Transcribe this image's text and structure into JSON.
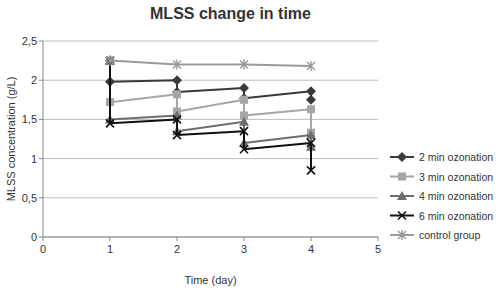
{
  "chart_data": {
    "type": "line",
    "title": "MLSS change in time",
    "x_label": "Time (day)",
    "y_label": "MLSS concentration (g/L)",
    "xlim": [
      0,
      5
    ],
    "xticks": [
      0,
      1,
      2,
      3,
      4,
      5
    ],
    "ylim": [
      0,
      2.5
    ],
    "yticks": [
      0,
      {
        "value": 0.5,
        "label": "0,5"
      },
      1,
      {
        "value": 1.5,
        "label": "1,5"
      },
      2,
      {
        "value": 2.5,
        "label": "2,5"
      }
    ],
    "grid": true,
    "legend": "right",
    "series": [
      {
        "name": "2 min ozonation",
        "color": "#3a3a3a",
        "marker": "diamond",
        "x": [
          1,
          1,
          2,
          2,
          3,
          3,
          4,
          4
        ],
        "values": [
          2.25,
          1.98,
          2.0,
          1.85,
          1.9,
          1.77,
          1.86,
          1.75
        ]
      },
      {
        "name": "3 min ozonation",
        "color": "#a6a6a6",
        "marker": "square",
        "x": [
          1,
          1,
          2,
          2,
          3,
          3,
          4,
          4
        ],
        "values": [
          2.25,
          1.72,
          1.82,
          1.6,
          1.75,
          1.55,
          1.63,
          1.33
        ]
      },
      {
        "name": "4 min ozonation",
        "color": "#6e6e6e",
        "marker": "triangle",
        "x": [
          1,
          1,
          2,
          2,
          3,
          3,
          4,
          4
        ],
        "values": [
          2.25,
          1.5,
          1.55,
          1.35,
          1.47,
          1.2,
          1.3,
          1.15
        ]
      },
      {
        "name": "6 min ozonation",
        "color": "#111111",
        "marker": "x",
        "x": [
          1,
          1,
          2,
          2,
          3,
          3,
          4,
          4
        ],
        "values": [
          2.25,
          1.45,
          1.5,
          1.3,
          1.35,
          1.12,
          1.2,
          0.85
        ]
      },
      {
        "name": "control group",
        "color": "#9a9a9a",
        "marker": "asterisk",
        "x": [
          1,
          2,
          3,
          4
        ],
        "values": [
          2.25,
          2.2,
          2.2,
          2.18
        ]
      }
    ]
  }
}
